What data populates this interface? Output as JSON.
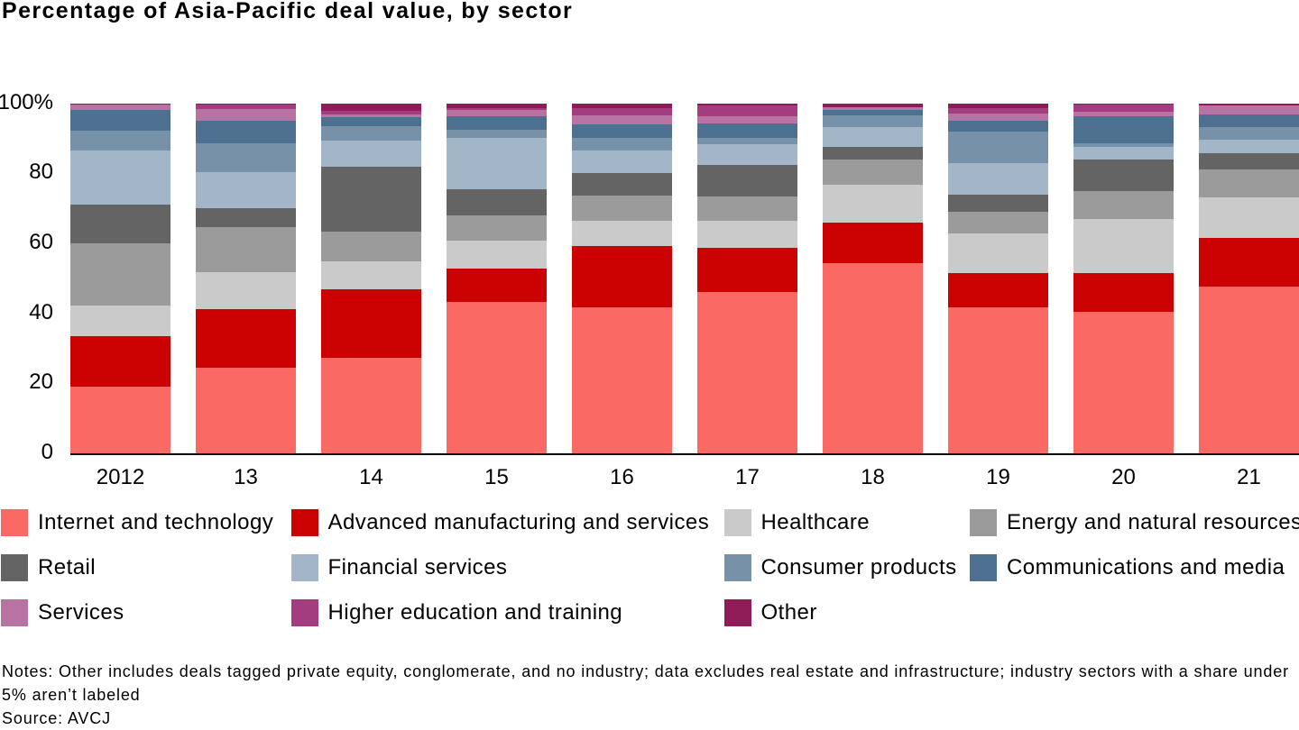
{
  "title": "Percentage of Asia-Pacific deal value, by sector",
  "notes": "Notes: Other includes deals tagged private equity, conglomerate, and no industry; data excludes real estate and infrastructure; industry sectors with a share under 5% aren’t labeled",
  "source": "Source: AVCJ",
  "chart_data": {
    "type": "bar",
    "stacked": true,
    "unit": "percent of total deal value",
    "title": "Percentage of Asia-Pacific deal value, by sector",
    "xlabel": "",
    "ylabel": "",
    "ylim": [
      0,
      100
    ],
    "grid": false,
    "legend_position": "bottom",
    "y_ticks": [
      {
        "value": 100,
        "label": "100%"
      },
      {
        "value": 80,
        "label": "80"
      },
      {
        "value": 60,
        "label": "60"
      },
      {
        "value": 40,
        "label": "40"
      },
      {
        "value": 20,
        "label": "20"
      },
      {
        "value": 0,
        "label": "0"
      }
    ],
    "categories": [
      "2012",
      "13",
      "14",
      "15",
      "16",
      "17",
      "18",
      "19",
      "20",
      "21"
    ],
    "series": [
      {
        "name": "Internet and technology",
        "color": "#fa6964",
        "values": [
          19.0,
          24.4,
          27.2,
          43.3,
          41.6,
          46.2,
          54.2,
          41.8,
          40.5,
          47.5
        ]
      },
      {
        "name": "Advanced manufacturing and services",
        "color": "#cc0101",
        "values": [
          14.5,
          16.7,
          19.7,
          9.5,
          17.5,
          12.6,
          11.6,
          9.7,
          11.0,
          13.9
        ]
      },
      {
        "name": "Healthcare",
        "color": "#cbcaca",
        "values": [
          8.7,
          10.7,
          7.9,
          7.9,
          7.3,
          7.6,
          10.9,
          11.3,
          15.5,
          11.6
        ]
      },
      {
        "name": "Energy and natural resources",
        "color": "#9b9b9b",
        "values": [
          17.9,
          12.9,
          8.6,
          7.3,
          7.3,
          7.0,
          7.3,
          6.3,
          7.9,
          8.0
        ]
      },
      {
        "name": "Retail",
        "color": "#646464",
        "values": [
          10.9,
          5.3,
          18.5,
          7.3,
          6.3,
          8.9,
          3.6,
          4.8,
          8.9,
          4.6
        ]
      },
      {
        "name": "Financial services",
        "color": "#a3b6c7",
        "values": [
          15.5,
          10.3,
          7.3,
          14.9,
          6.6,
          5.9,
          5.6,
          9.1,
          3.7,
          4.0
        ]
      },
      {
        "name": "Consumer products",
        "color": "#7691a8",
        "values": [
          5.6,
          8.2,
          4.3,
          2.3,
          3.6,
          2.0,
          3.3,
          8.9,
          1.0,
          3.6
        ]
      },
      {
        "name": "Communications and media",
        "color": "#4d7090",
        "values": [
          6.1,
          6.4,
          2.5,
          3.7,
          3.7,
          4.0,
          1.65,
          3.0,
          7.7,
          3.7
        ]
      },
      {
        "name": "Services",
        "color": "#b873a2",
        "values": [
          1.4,
          3.4,
          0.9,
          2.0,
          2.6,
          2.0,
          0.65,
          2.2,
          1.5,
          2.4
        ]
      },
      {
        "name": "Higher education and training",
        "color": "#a43c80",
        "values": [
          0.0,
          1.3,
          1.0,
          0.3,
          2.0,
          3.3,
          0.0,
          1.6,
          2.0,
          0.0
        ]
      },
      {
        "name": "Other",
        "color": "#8f1c56",
        "values": [
          0.4,
          0.4,
          2.1,
          1.5,
          1.5,
          0.5,
          1.2,
          1.3,
          0.3,
          0.7
        ]
      }
    ]
  }
}
